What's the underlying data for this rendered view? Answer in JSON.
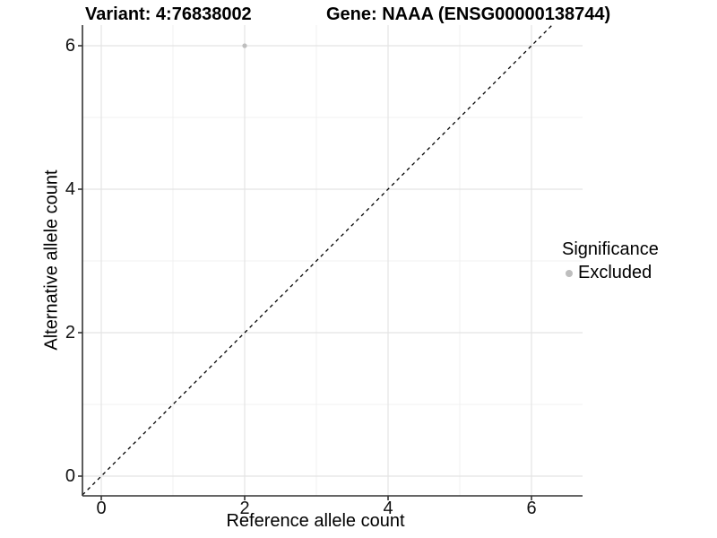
{
  "chart_data": {
    "type": "scatter",
    "title_left": "Variant: 4:76838002",
    "title_right": "Gene: NAAA (ENSG00000138744)",
    "xlabel": "Reference allele count",
    "ylabel": "Alternative allele count",
    "x_ticks": [
      "0",
      "2",
      "4",
      "6"
    ],
    "y_ticks": [
      "0",
      "2",
      "4",
      "6"
    ],
    "x_tick_values": [
      0,
      2,
      4,
      6
    ],
    "y_tick_values": [
      0,
      2,
      4,
      6
    ],
    "xlim": [
      -0.26,
      6.72
    ],
    "ylim": [
      -0.28,
      6.29
    ],
    "grid": {
      "show": true,
      "minor_tick_values": [
        1,
        3,
        5
      ],
      "major_color": "#e4e4e4",
      "minor_color": "#f1f1f1"
    },
    "axis_color": "#333333",
    "series": [
      {
        "name": "Excluded",
        "color": "#bebebe",
        "points": [
          [
            2,
            6
          ]
        ]
      }
    ],
    "reference_line": {
      "kind": "identity",
      "slope": 1,
      "intercept": 0,
      "style": "dashed",
      "color": "#000000"
    },
    "legend": {
      "title": "Significance",
      "position": "right",
      "entries": [
        {
          "label": "Excluded",
          "color": "#bebebe"
        }
      ]
    }
  }
}
